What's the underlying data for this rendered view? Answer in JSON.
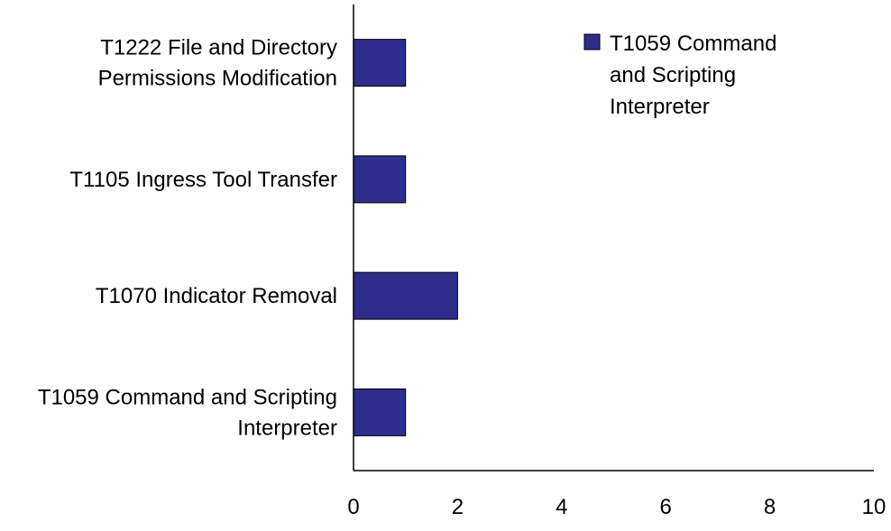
{
  "chart_data": {
    "type": "bar",
    "orientation": "horizontal",
    "title": "",
    "xlabel": "",
    "ylabel": "",
    "categories": [
      [
        "T1059 Command and Scripting",
        "Interpreter"
      ],
      [
        "T1070 Indicator Removal"
      ],
      [
        "T1105 Ingress Tool Transfer"
      ],
      [
        "T1222 File and Directory",
        "Permissions Modification"
      ]
    ],
    "series": [
      {
        "name_lines": [
          "T1059 Command",
          "and Scripting",
          "Interpreter"
        ],
        "color": "#2E2D8C",
        "values": [
          1,
          2,
          1,
          1
        ]
      }
    ],
    "xlim": [
      0,
      10
    ],
    "xticks": [
      "0",
      "2",
      "4",
      "6",
      "8",
      "10"
    ],
    "grid": false,
    "legend_position": "top-right"
  }
}
